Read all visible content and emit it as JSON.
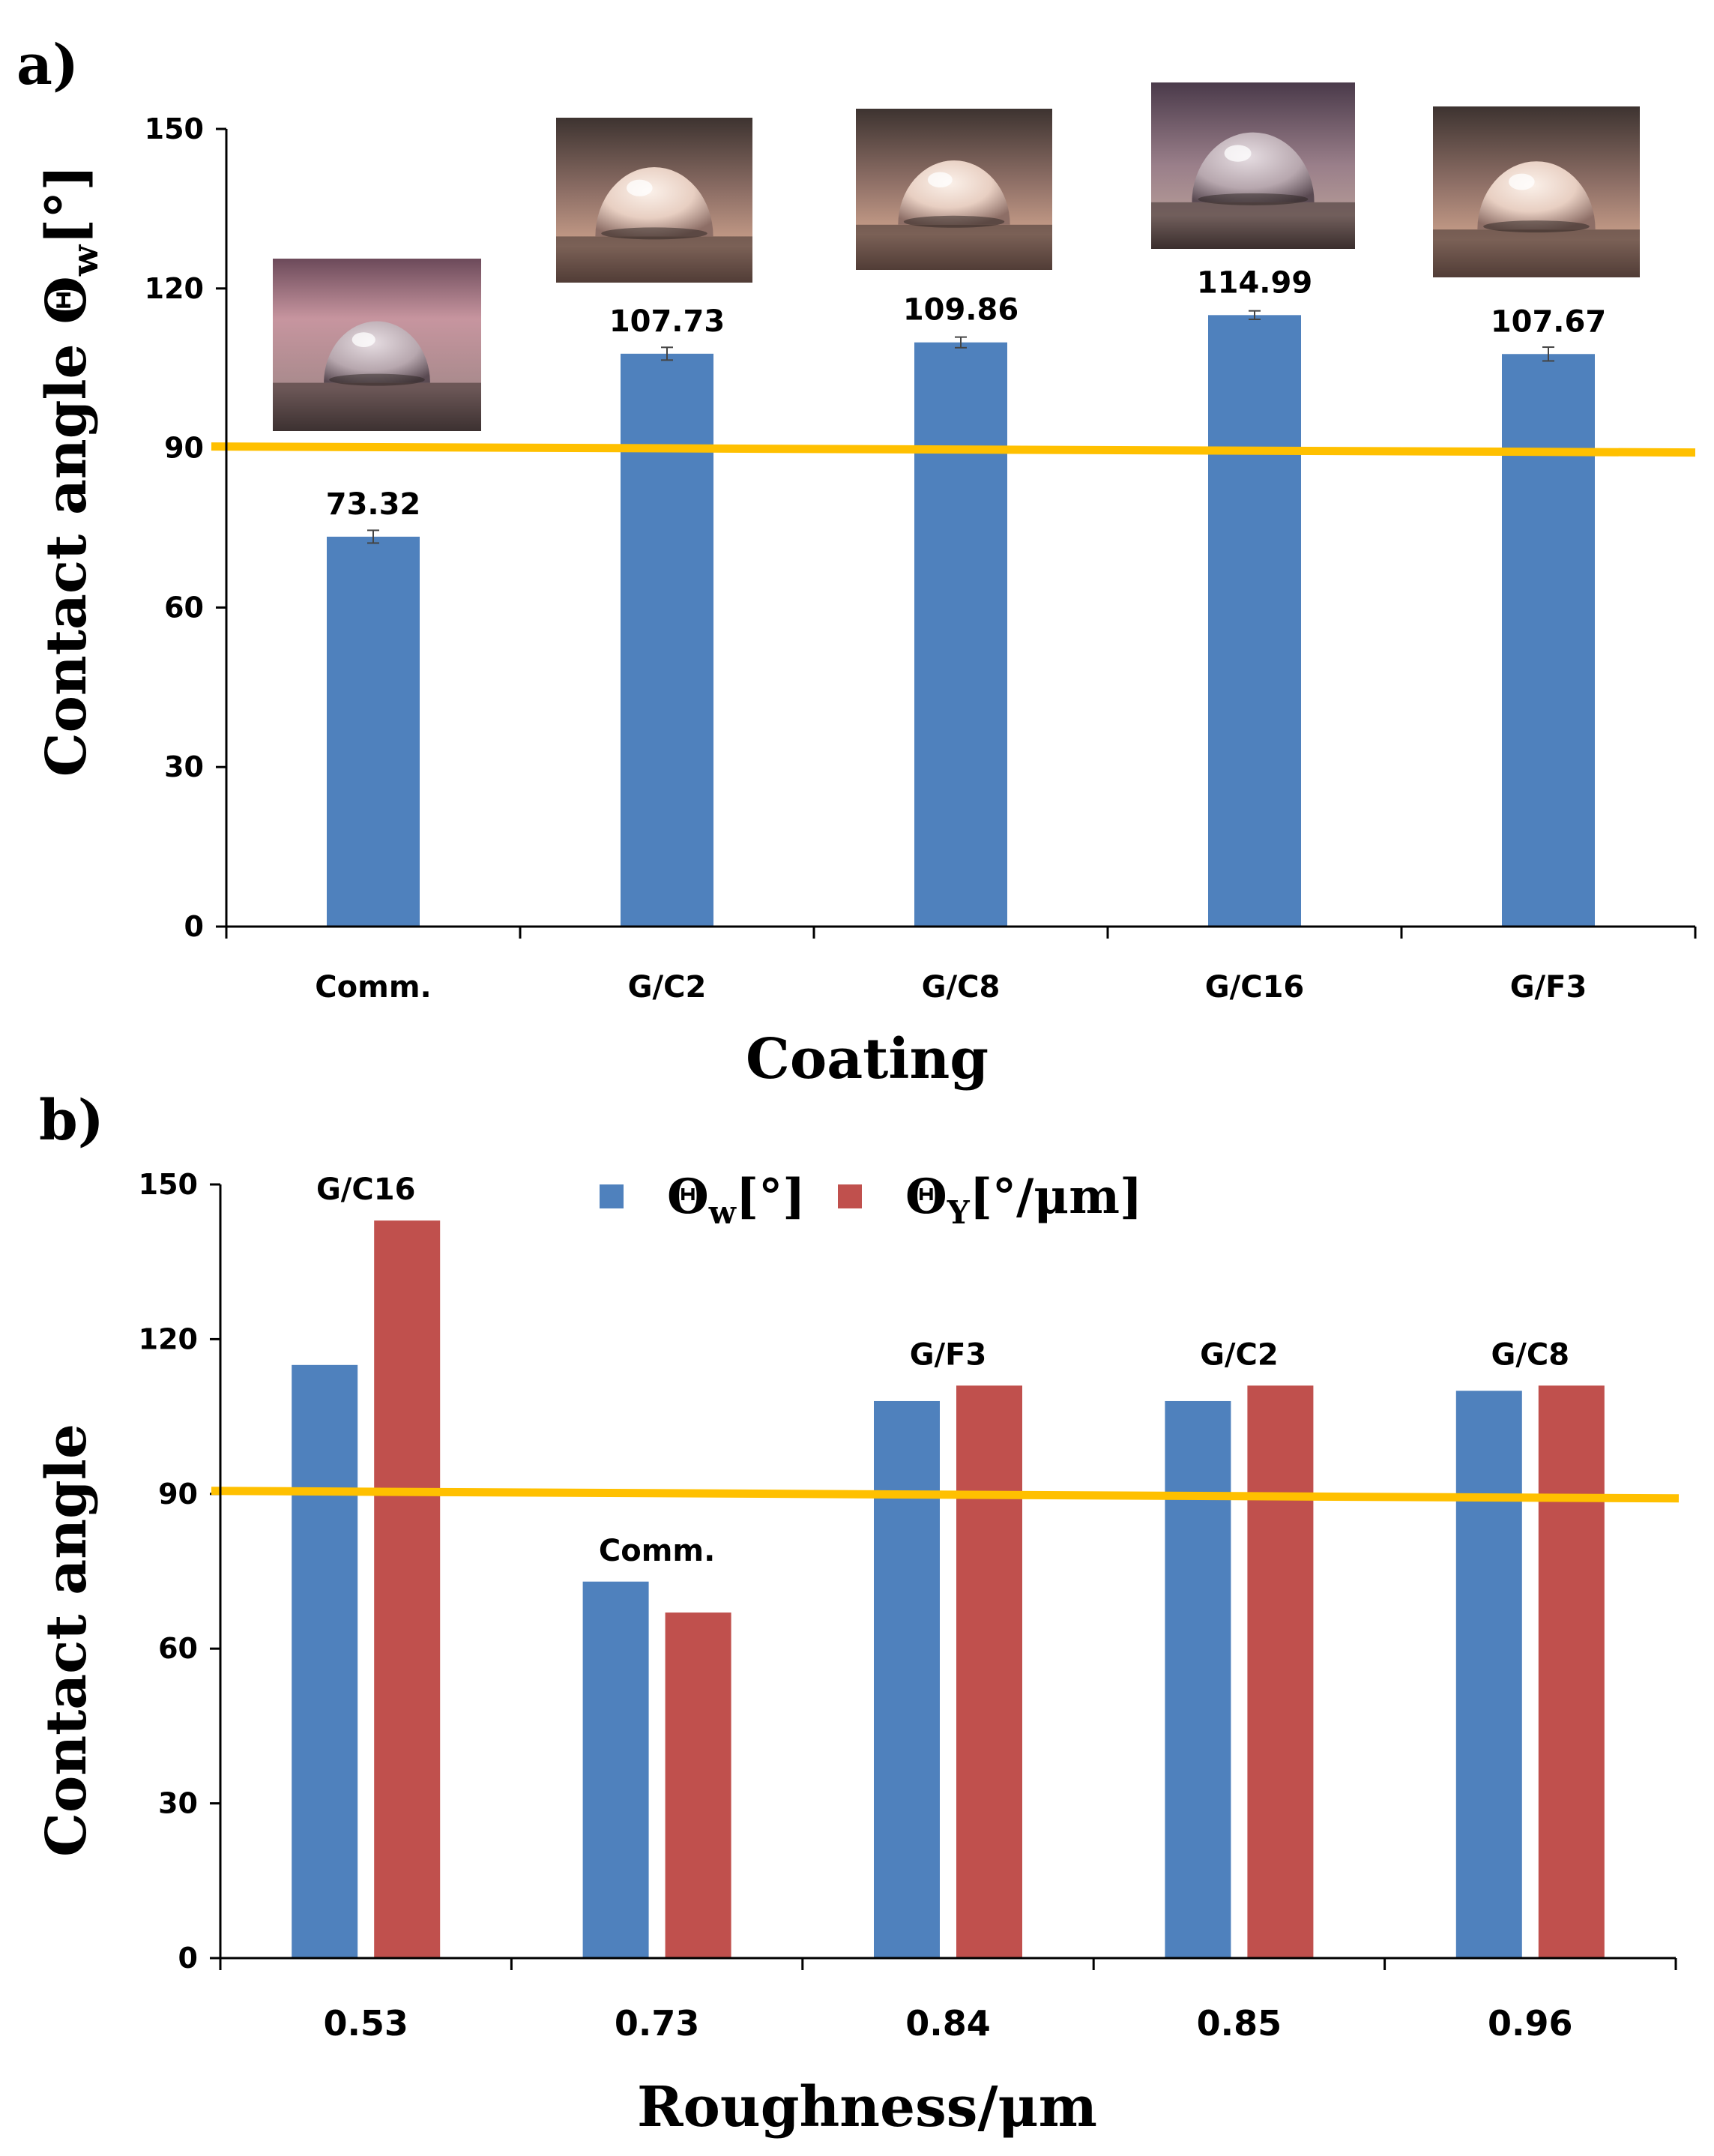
{
  "chart_data": [
    {
      "panel": "a)",
      "type": "bar",
      "xlabel": "Coating",
      "ylabel": "Contact angle Θ",
      "ylabel_sub": "w",
      "ylabel_unit": "[°]",
      "categories": [
        "Comm.",
        "G/C2",
        "G/C8",
        "G/C16",
        "G/F3"
      ],
      "values": [
        73.32,
        107.73,
        109.86,
        114.99,
        107.67
      ],
      "value_labels": [
        "73.32",
        "107.73",
        "109.86",
        "114.99",
        "107.67"
      ],
      "errors": [
        1.2,
        1.2,
        1.0,
        0.8,
        1.3
      ],
      "ylim": [
        0,
        150
      ],
      "yticks": [
        0,
        30,
        60,
        90,
        120,
        150
      ],
      "reference_line": 90,
      "colors": {
        "bar": "#4F81BD",
        "reference": "#FFC000",
        "error": "#444444"
      },
      "insets": [
        "droplet-photo",
        "droplet-photo",
        "droplet-photo",
        "droplet-photo",
        "droplet-photo"
      ]
    },
    {
      "panel": "b)",
      "type": "bar",
      "xlabel": "Roughness/μm",
      "ylabel": "Contact angle",
      "categories": [
        "0.53",
        "0.73",
        "0.84",
        "0.85",
        "0.96"
      ],
      "category_labels": [
        "G/C16",
        "Comm.",
        "G/F3",
        "G/C2",
        "G/C8"
      ],
      "series": [
        {
          "name": "Θw[°]",
          "prefix": "Θ",
          "sub": "w",
          "unit": "[°]",
          "color": "#4F81BD",
          "values": [
            115,
            73,
            108,
            108,
            110
          ]
        },
        {
          "name": "ΘY[°/μm]",
          "prefix": "Θ",
          "sub": "Y",
          "unit": "[°/μm]",
          "color": "#C0504D",
          "values": [
            143,
            67,
            111,
            111,
            111
          ]
        }
      ],
      "ylim": [
        0,
        150
      ],
      "yticks": [
        0,
        30,
        60,
        90,
        120,
        150
      ],
      "reference_line": 90,
      "colors": {
        "reference": "#FFC000"
      },
      "legend_position": "top-center"
    }
  ]
}
